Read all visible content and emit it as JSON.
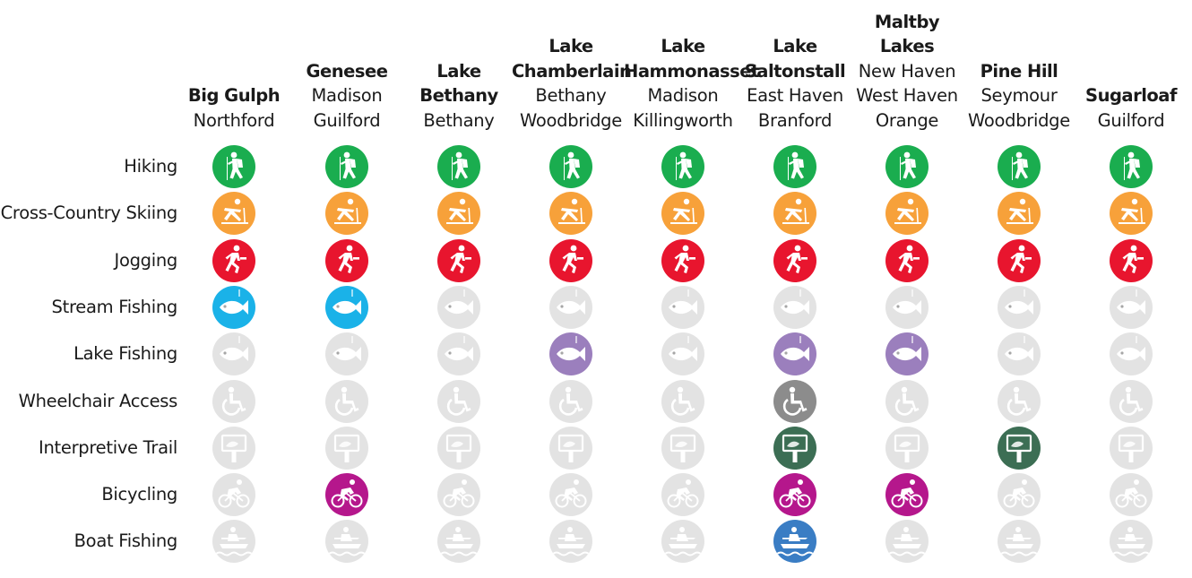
{
  "chart_data": {
    "type": "table",
    "columns": [
      {
        "name": "Big Gulph",
        "towns": [
          "Northford"
        ]
      },
      {
        "name": "Genesee",
        "towns": [
          "Madison",
          "Guilford"
        ]
      },
      {
        "name": "Lake Bethany",
        "towns": [
          "Bethany"
        ]
      },
      {
        "name": "Lake Chamberlain",
        "towns": [
          "Bethany",
          "Woodbridge"
        ]
      },
      {
        "name": "Lake Hammonasset",
        "towns": [
          "Madison",
          "Killingworth"
        ]
      },
      {
        "name": "Lake Saltonstall",
        "towns": [
          "East Haven",
          "Branford"
        ]
      },
      {
        "name": "Maltby Lakes",
        "towns": [
          "New Haven",
          "West Haven",
          "Orange"
        ]
      },
      {
        "name": "Pine Hill",
        "towns": [
          "Seymour",
          "Woodbridge"
        ]
      },
      {
        "name": "Sugarloaf",
        "towns": [
          "Guilford"
        ]
      }
    ],
    "activities": [
      {
        "label": "Hiking",
        "icon": "hiker-icon",
        "color": "#1aad4f",
        "available": [
          true,
          true,
          true,
          true,
          true,
          true,
          true,
          true,
          true
        ]
      },
      {
        "label": "Cross-Country Skiing",
        "icon": "skier-icon",
        "color": "#f7a13a",
        "available": [
          true,
          true,
          true,
          true,
          true,
          true,
          true,
          true,
          true
        ]
      },
      {
        "label": "Jogging",
        "icon": "jogger-icon",
        "color": "#e8152e",
        "available": [
          true,
          true,
          true,
          true,
          true,
          true,
          true,
          true,
          true
        ]
      },
      {
        "label": "Stream Fishing",
        "icon": "fish-icon",
        "color": "#1ab2e8",
        "available": [
          true,
          true,
          false,
          false,
          false,
          false,
          false,
          false,
          false
        ]
      },
      {
        "label": "Lake Fishing",
        "icon": "fish-icon",
        "color": "#9b7fbd",
        "available": [
          false,
          false,
          false,
          true,
          false,
          true,
          true,
          false,
          false
        ]
      },
      {
        "label": "Wheelchair Access",
        "icon": "wheelchair-icon",
        "color": "#8c8c8c",
        "available": [
          false,
          false,
          false,
          false,
          false,
          true,
          false,
          false,
          false
        ]
      },
      {
        "label": "Interpretive Trail",
        "icon": "sign-icon",
        "color": "#3c6e54",
        "available": [
          false,
          false,
          false,
          false,
          false,
          true,
          false,
          true,
          false
        ]
      },
      {
        "label": "Bicycling",
        "icon": "bicycle-icon",
        "color": "#b5178c",
        "available": [
          false,
          true,
          false,
          false,
          false,
          true,
          true,
          false,
          false
        ]
      },
      {
        "label": "Boat Fishing",
        "icon": "boat-icon",
        "color": "#3a7dc4",
        "available": [
          false,
          false,
          false,
          false,
          false,
          true,
          false,
          false,
          false
        ]
      }
    ],
    "inactive_color": "#e3e3e3"
  }
}
